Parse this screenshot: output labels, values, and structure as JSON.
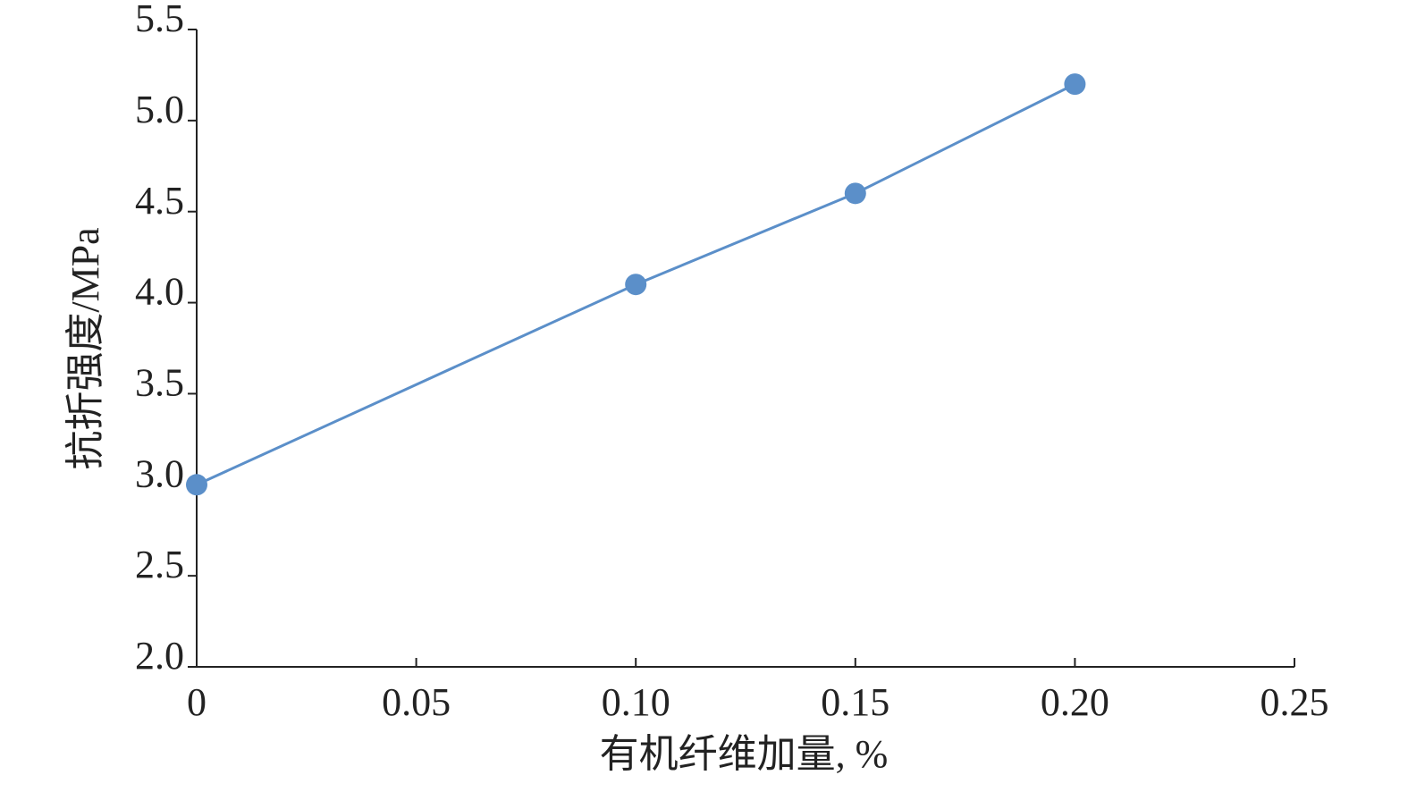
{
  "chart_data": {
    "type": "line",
    "x_label": "有机纤维加量, %",
    "y_label": "抗折强度/MPa",
    "x": [
      0,
      0.1,
      0.15,
      0.2
    ],
    "values": [
      3.0,
      4.1,
      4.6,
      5.2
    ],
    "color": "#5b8fc9",
    "xlim": [
      0,
      0.25
    ],
    "xticks": [
      0,
      0.05,
      {
        "value": 0.1,
        "label": "0.10"
      },
      0.15,
      {
        "value": 0.2,
        "label": "0.20"
      },
      0.25
    ],
    "ylim": [
      2.0,
      5.5
    ],
    "yticks": [
      {
        "value": 2.0,
        "label": "2.0"
      },
      2.5,
      {
        "value": 3.0,
        "label": "3.0"
      },
      3.5,
      {
        "value": 4.0,
        "label": "4.0"
      },
      4.5,
      {
        "value": 5.0,
        "label": "5.0"
      },
      5.5
    ],
    "grid": false
  }
}
